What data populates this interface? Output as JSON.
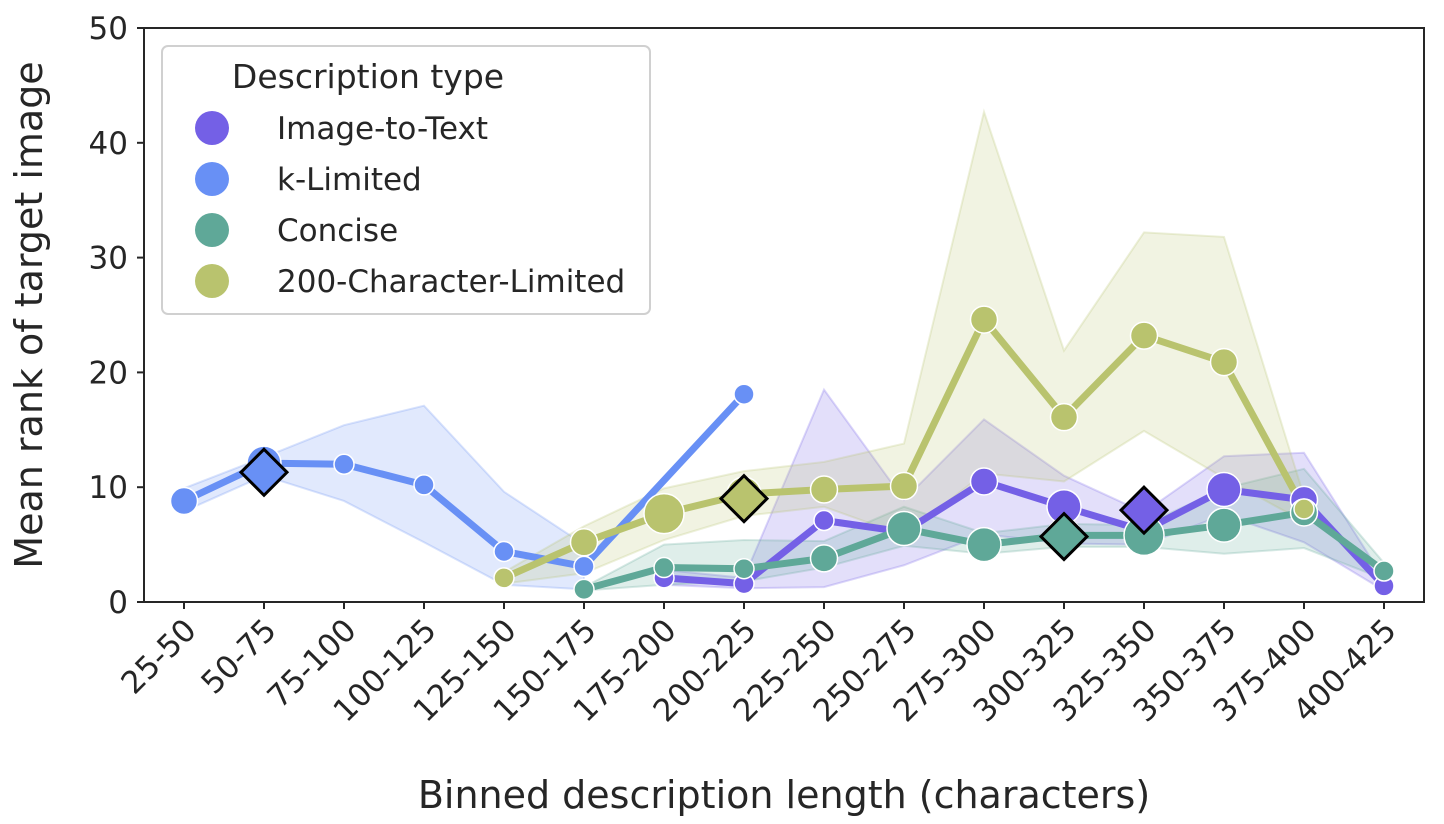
{
  "chart_data": {
    "type": "line",
    "title": "",
    "xlabel": "Binned description length (characters)",
    "ylabel": "Mean rank of target image",
    "categories": [
      "25-50",
      "50-75",
      "75-100",
      "100-125",
      "125-150",
      "150-175",
      "175-200",
      "200-225",
      "225-250",
      "250-275",
      "275-300",
      "300-325",
      "325-350",
      "350-375",
      "375-400",
      "400-425"
    ],
    "ylim": [
      0,
      50
    ],
    "yticks": [
      0,
      10,
      20,
      30,
      40,
      50
    ],
    "grid": false,
    "legend": {
      "title": "Description type",
      "placement": "top-left"
    },
    "series": [
      {
        "name": "Image-to-Text",
        "color": "#7460e6",
        "values": [
          null,
          null,
          null,
          null,
          null,
          null,
          2.1,
          1.6,
          7.1,
          6.1,
          10.5,
          8.3,
          6.2,
          9.8,
          8.9,
          1.4
        ],
        "lower": [
          null,
          null,
          null,
          null,
          null,
          null,
          1.5,
          1.2,
          1.3,
          3.2,
          5.9,
          5.1,
          5.0,
          7.6,
          5.2,
          1.0
        ],
        "upper": [
          null,
          null,
          null,
          null,
          null,
          null,
          2.8,
          2.1,
          18.5,
          8.9,
          15.9,
          11.0,
          7.8,
          12.7,
          13.0,
          2.0
        ],
        "sizes": [
          null,
          null,
          null,
          null,
          null,
          null,
          1,
          1,
          1,
          1,
          2,
          3,
          2,
          3,
          2,
          1
        ],
        "mean_length_bin": 12,
        "mean_rank": 8.0
      },
      {
        "name": "k-Limited",
        "color": "#6890f5",
        "values": [
          8.8,
          12.1,
          12.0,
          10.2,
          4.4,
          3.1,
          null,
          18.1,
          null,
          null,
          null,
          null,
          null,
          null,
          null,
          null
        ],
        "lower": [
          7.9,
          11.0,
          8.8,
          5.2,
          1.5,
          1.1,
          null,
          null,
          null,
          null,
          null,
          null,
          null,
          null,
          null,
          null
        ],
        "upper": [
          9.9,
          12.6,
          15.4,
          17.1,
          9.6,
          5.0,
          null,
          null,
          null,
          null,
          null,
          null,
          null,
          null,
          null,
          null
        ],
        "sizes": [
          2,
          3,
          1,
          1,
          1,
          1,
          null,
          1,
          null,
          null,
          null,
          null,
          null,
          null,
          null,
          null
        ],
        "mean_length_bin": 1,
        "mean_rank": 11.3
      },
      {
        "name": "Concise",
        "color": "#5fa898",
        "values": [
          null,
          null,
          null,
          null,
          null,
          1.1,
          3.0,
          2.9,
          3.8,
          6.4,
          5.0,
          5.8,
          5.8,
          6.7,
          7.8,
          2.7
        ],
        "lower": [
          null,
          null,
          null,
          null,
          null,
          1.0,
          1.5,
          1.8,
          3.0,
          4.9,
          4.2,
          4.8,
          4.8,
          4.2,
          4.7,
          2.0
        ],
        "upper": [
          null,
          null,
          null,
          null,
          null,
          1.3,
          5.0,
          5.4,
          5.3,
          8.3,
          6.0,
          6.8,
          6.7,
          9.9,
          11.6,
          3.4
        ],
        "sizes": [
          null,
          null,
          null,
          null,
          null,
          1,
          1,
          1,
          2,
          3,
          3,
          3,
          4,
          3,
          2,
          1
        ],
        "mean_length_bin": 11,
        "mean_rank": 5.7
      },
      {
        "name": "200-Character-Limited",
        "color": "#b9c36e",
        "values": [
          null,
          null,
          null,
          null,
          2.1,
          5.2,
          7.7,
          9.4,
          9.8,
          10.1,
          24.6,
          16.1,
          23.2,
          20.9,
          8.1,
          null
        ],
        "lower": [
          null,
          null,
          null,
          null,
          1.6,
          2.5,
          5.4,
          7.5,
          8.3,
          5.8,
          11.2,
          10.5,
          14.9,
          10.8,
          7.0,
          null
        ],
        "upper": [
          null,
          null,
          null,
          null,
          2.6,
          6.6,
          9.9,
          11.4,
          12.2,
          13.8,
          42.7,
          21.9,
          32.2,
          31.8,
          9.2,
          null
        ],
        "sizes": [
          null,
          null,
          null,
          null,
          1,
          2,
          4,
          3,
          2,
          2,
          2,
          2,
          2,
          2,
          1,
          null
        ],
        "mean_length_bin": 7,
        "mean_rank": 9.0
      }
    ]
  }
}
